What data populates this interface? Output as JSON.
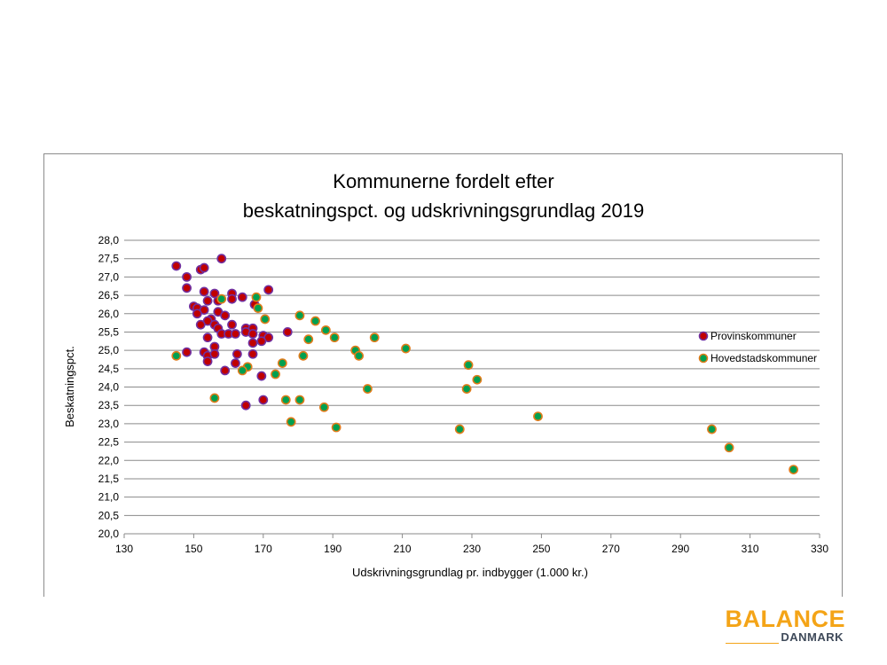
{
  "chart_data": {
    "type": "scatter",
    "title_lines": [
      "Kommunerne fordelt efter",
      "beskatningspct. og udskrivningsgrundlag 2019"
    ],
    "xlabel": "Udskrivningsgrundlag pr. indbygger (1.000 kr.)",
    "ylabel": "Beskatningspct.",
    "xlim": [
      130,
      330
    ],
    "ylim": [
      20.0,
      28.0
    ],
    "x_ticks": [
      "130",
      "150",
      "170",
      "190",
      "210",
      "230",
      "250",
      "270",
      "290",
      "310",
      "330"
    ],
    "y_ticks": [
      "20,0",
      "20,5",
      "21,0",
      "21,5",
      "22,0",
      "22,5",
      "23,0",
      "23,5",
      "24,0",
      "24,5",
      "25,0",
      "25,5",
      "26,0",
      "26,5",
      "27,0",
      "27,5",
      "28,0"
    ],
    "grid": "horizontal",
    "legend_position": "right",
    "series": [
      {
        "name": "Provinskommuner",
        "fill": "#c00000",
        "edge": "#7030a0",
        "points": [
          [
            145,
            27.3
          ],
          [
            148,
            27.0
          ],
          [
            158,
            27.5
          ],
          [
            152,
            27.2
          ],
          [
            153,
            27.25
          ],
          [
            148,
            26.7
          ],
          [
            153,
            26.6
          ],
          [
            156,
            26.55
          ],
          [
            161,
            26.55
          ],
          [
            171.5,
            26.65
          ],
          [
            164,
            26.45
          ],
          [
            154,
            26.35
          ],
          [
            157,
            26.35
          ],
          [
            161,
            26.4
          ],
          [
            167.5,
            26.25
          ],
          [
            150,
            26.2
          ],
          [
            151,
            26.15
          ],
          [
            153,
            26.1
          ],
          [
            157,
            26.05
          ],
          [
            159,
            25.95
          ],
          [
            151,
            26.0
          ],
          [
            155,
            25.85
          ],
          [
            154,
            25.8
          ],
          [
            152,
            25.7
          ],
          [
            156,
            25.7
          ],
          [
            157,
            25.6
          ],
          [
            161,
            25.7
          ],
          [
            165,
            25.6
          ],
          [
            167,
            25.6
          ],
          [
            177,
            25.5
          ],
          [
            154,
            25.35
          ],
          [
            158,
            25.45
          ],
          [
            160,
            25.45
          ],
          [
            162,
            25.45
          ],
          [
            165,
            25.5
          ],
          [
            167,
            25.45
          ],
          [
            170,
            25.4
          ],
          [
            171.5,
            25.35
          ],
          [
            167,
            25.2
          ],
          [
            169.5,
            25.25
          ],
          [
            156,
            25.1
          ],
          [
            148,
            24.95
          ],
          [
            153,
            24.95
          ],
          [
            154,
            24.85
          ],
          [
            156,
            24.9
          ],
          [
            162.5,
            24.9
          ],
          [
            167,
            24.9
          ],
          [
            154,
            24.7
          ],
          [
            162,
            24.65
          ],
          [
            159,
            24.45
          ],
          [
            169.5,
            24.3
          ],
          [
            170,
            23.65
          ],
          [
            165,
            23.5
          ]
        ]
      },
      {
        "name": "Hovedstadskommuner",
        "fill": "#00a050",
        "edge": "#e07b1a",
        "points": [
          [
            158,
            26.4
          ],
          [
            168,
            26.45
          ],
          [
            168.5,
            26.15
          ],
          [
            170.5,
            25.85
          ],
          [
            180.5,
            25.95
          ],
          [
            185,
            25.8
          ],
          [
            188,
            25.55
          ],
          [
            183,
            25.3
          ],
          [
            190.5,
            25.35
          ],
          [
            202,
            25.35
          ],
          [
            211,
            25.05
          ],
          [
            196.5,
            25.0
          ],
          [
            197.5,
            24.85
          ],
          [
            181.5,
            24.85
          ],
          [
            145,
            24.85
          ],
          [
            175.5,
            24.65
          ],
          [
            165.5,
            24.55
          ],
          [
            164,
            24.45
          ],
          [
            173.5,
            24.35
          ],
          [
            229,
            24.6
          ],
          [
            231.5,
            24.2
          ],
          [
            228.5,
            23.95
          ],
          [
            200,
            23.95
          ],
          [
            156,
            23.7
          ],
          [
            176.5,
            23.65
          ],
          [
            180.5,
            23.65
          ],
          [
            187.5,
            23.45
          ],
          [
            249,
            23.2
          ],
          [
            178,
            23.05
          ],
          [
            191,
            22.9
          ],
          [
            226.5,
            22.85
          ],
          [
            299,
            22.85
          ],
          [
            304,
            22.35
          ],
          [
            322.5,
            21.75
          ]
        ]
      }
    ]
  },
  "logo": {
    "word1": "BALANCE",
    "word2": "DANMARK",
    "color_primary": "#f4a417",
    "color_secondary": "#3f4a5a"
  }
}
